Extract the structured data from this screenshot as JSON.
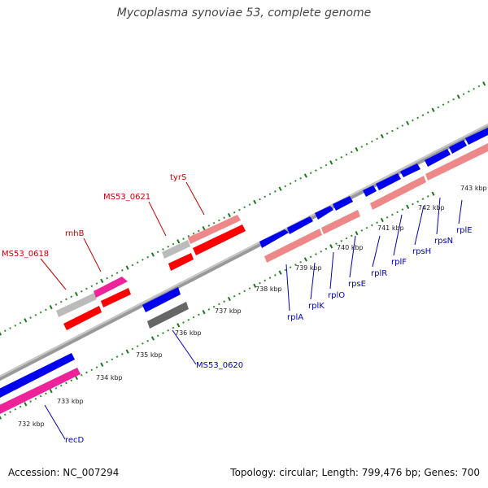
{
  "title": "Mycoplasma synoviae 53, complete genome",
  "footer": {
    "accession": "Accession: NC_007294",
    "topology": "Topology: circular; Length: 799,476 bp; Genes: 700"
  },
  "colors": {
    "backbone": "#999999",
    "tick_dot": "#2e8b2e",
    "tick_major": "#1a7a1a",
    "cds_blue": "#0000ee",
    "cds_red": "#ff0000",
    "cds_magenta": "#ee2299",
    "cds_grey": "#bbbbbb",
    "cds_darkgrey": "#666666",
    "rrna_pink": "#ee8888",
    "label_red": "#cc0000",
    "label_blue": "#0000bb"
  },
  "scale_labels": [
    "732 kbp",
    "733 kbp",
    "734 kbp",
    "735 kbp",
    "736 kbp",
    "737 kbp",
    "738 kbp",
    "739 kbp",
    "740 kbp",
    "741 kbp",
    "742 kbp",
    "743 kbp"
  ],
  "gene_labels": [
    {
      "id": "MS53_0618",
      "text": "MS53_0618",
      "color": "red"
    },
    {
      "id": "rnhB",
      "text": "rnhB",
      "color": "red"
    },
    {
      "id": "MS53_0621",
      "text": "MS53_0621",
      "color": "red"
    },
    {
      "id": "tyrS",
      "text": "tyrS",
      "color": "red"
    },
    {
      "id": "MS53_0620",
      "text": "MS53_0620",
      "color": "blue"
    },
    {
      "id": "recD",
      "text": "recD",
      "color": "blue"
    },
    {
      "id": "rplA",
      "text": "rplA",
      "color": "blue"
    },
    {
      "id": "rplK",
      "text": "rplK",
      "color": "blue"
    },
    {
      "id": "rplO",
      "text": "rplO",
      "color": "blue"
    },
    {
      "id": "rpsE",
      "text": "rpsE",
      "color": "blue"
    },
    {
      "id": "rplR",
      "text": "rplR",
      "color": "blue"
    },
    {
      "id": "rplF",
      "text": "rplF",
      "color": "blue"
    },
    {
      "id": "rpsH",
      "text": "rpsH",
      "color": "blue"
    },
    {
      "id": "rpsN",
      "text": "rpsN",
      "color": "blue"
    },
    {
      "id": "rplE",
      "text": "rplE",
      "color": "blue"
    }
  ]
}
